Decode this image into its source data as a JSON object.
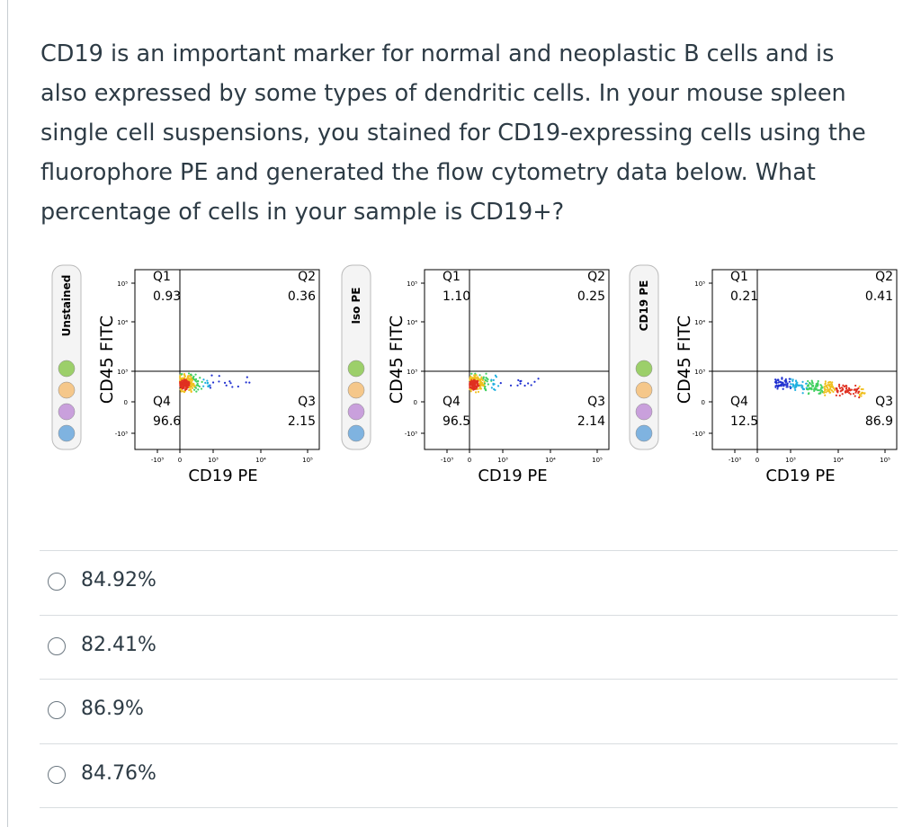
{
  "question": {
    "lines": [
      "CD19 is an important marker for normal and neoplastic B cells and is",
      "also expressed by some types of dendritic cells. In your mouse spleen",
      "single cell suspensions, you stained for CD19-expressing cells using the",
      "fluorophore PE and generated the flow cytometry data below. What",
      "percentage of cells in your sample is CD19+?"
    ]
  },
  "panels": [
    {
      "tube_label": "Unstained",
      "y_label": "CD45 FITC",
      "x_label": "CD19 PE",
      "y_ticks": [
        "10⁵",
        "10⁴",
        "10³",
        "0",
        "-10³"
      ],
      "x_ticks": [
        "-10³",
        "0",
        "10³",
        "10⁴",
        "10⁵"
      ],
      "quadrants": [
        {
          "name": "Q1",
          "value": "0.93"
        },
        {
          "name": "Q2",
          "value": "0.36"
        },
        {
          "name": "Q3",
          "value": "2.15"
        },
        {
          "name": "Q4",
          "value": "96.6"
        }
      ]
    },
    {
      "tube_label": "Iso PE",
      "y_label": "CD45 FITC",
      "x_label": "CD19 PE",
      "y_ticks": [
        "10⁵",
        "10⁴",
        "10³",
        "0",
        "-10³"
      ],
      "x_ticks": [
        "-10³",
        "0",
        "10³",
        "10⁴",
        "10⁵"
      ],
      "quadrants": [
        {
          "name": "Q1",
          "value": "1.10"
        },
        {
          "name": "Q2",
          "value": "0.25"
        },
        {
          "name": "Q3",
          "value": "2.14"
        },
        {
          "name": "Q4",
          "value": "96.5"
        }
      ]
    },
    {
      "tube_label": "CD19 PE",
      "y_label": "CD45 FITC",
      "x_label": "CD19 PE",
      "y_ticks": [
        "10⁵",
        "10⁴",
        "10³",
        "0",
        "-10³"
      ],
      "x_ticks": [
        "-10³",
        "0",
        "10³",
        "10⁴",
        "10⁵"
      ],
      "quadrants": [
        {
          "name": "Q1",
          "value": "0.21"
        },
        {
          "name": "Q2",
          "value": "0.41"
        },
        {
          "name": "Q3",
          "value": "86.9"
        },
        {
          "name": "Q4",
          "value": "12.5"
        }
      ]
    }
  ],
  "options": [
    "84.92%",
    "82.41%",
    "86.9%",
    "84.76%"
  ]
}
